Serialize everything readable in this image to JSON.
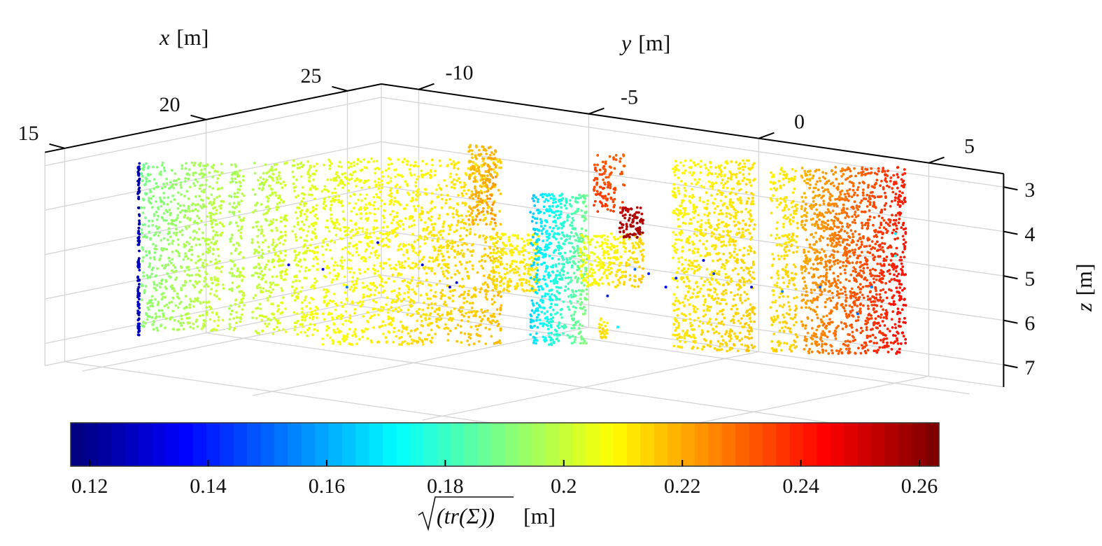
{
  "chart_data": {
    "type": "scatter",
    "dimensions": 3,
    "title": "",
    "axes": {
      "x": {
        "label_var": "x",
        "label_unit": "[m]",
        "ticks": [
          "15",
          "20",
          "25"
        ],
        "tick_values": [
          15,
          20,
          25
        ],
        "range": [
          14.3,
          26.2
        ]
      },
      "y": {
        "label_var": "y",
        "label_unit": "[m]",
        "ticks": [
          "-10",
          "-5",
          "0",
          "5"
        ],
        "tick_values": [
          -10,
          -5,
          0,
          5
        ],
        "range": [
          -11.1,
          7.2
        ]
      },
      "z": {
        "label_var": "z",
        "label_unit": "[m]",
        "ticks": [
          "3",
          "4",
          "5",
          "6",
          "7"
        ],
        "tick_values": [
          3,
          4,
          5,
          6,
          7
        ],
        "range": [
          2.7,
          7.5
        ],
        "reversed": true
      }
    },
    "grid": true,
    "colormap": "jet",
    "colorbar": {
      "location": "bottom",
      "label_sqrt_arg": "(tr(Σ))",
      "label_unit": "[m]",
      "ticks": [
        "0.12",
        "0.14",
        "0.16",
        "0.18",
        "0.2",
        "0.22",
        "0.24",
        "0.26"
      ],
      "tick_values": [
        0.12,
        0.14,
        0.16,
        0.18,
        0.2,
        0.22,
        0.24,
        0.26
      ],
      "clim": [
        0.1168,
        0.2633
      ]
    },
    "point_regions": [
      {
        "y": [
          -10.5,
          -10.45
        ],
        "z": [
          2.8,
          6.7
        ],
        "value": [
          0.125,
          0.125
        ],
        "n": 120
      },
      {
        "y": [
          -10.4,
          -8.0
        ],
        "z": [
          2.8,
          6.6
        ],
        "value": [
          0.19,
          0.2
        ],
        "n": 700
      },
      {
        "y": [
          -7.83,
          -7.4
        ],
        "z": [
          2.8,
          6.6
        ],
        "value": [
          0.196,
          0.2
        ],
        "n": 140
      },
      {
        "y": [
          -7.17,
          -6.15
        ],
        "z": [
          2.8,
          6.65
        ],
        "value": [
          0.198,
          0.203
        ],
        "n": 300
      },
      {
        "y": [
          -6.0,
          -5.25
        ],
        "z": [
          2.75,
          6.7
        ],
        "value": [
          0.202,
          0.206
        ],
        "n": 240
      },
      {
        "y": [
          -5.13,
          0.1
        ],
        "z": [
          2.7,
          6.9
        ],
        "value": [
          0.205,
          0.216
        ],
        "n": 1500
      },
      {
        "y": [
          -0.85,
          -0.05
        ],
        "z": [
          2.4,
          4.2
        ],
        "value": [
          0.218,
          0.222
        ],
        "n": 160
      },
      {
        "y": [
          -0.2,
          1.2
        ],
        "z": [
          4.4,
          5.7
        ],
        "value": [
          0.212,
          0.21
        ],
        "n": 220
      },
      {
        "y": [
          0.95,
          2.6
        ],
        "z": [
          3.5,
          6.9
        ],
        "value": [
          0.165,
          0.19
        ],
        "n": 650
      },
      {
        "y": [
          2.4,
          4.25
        ],
        "z": [
          4.4,
          5.6
        ],
        "value": [
          0.205,
          0.215
        ],
        "n": 260
      },
      {
        "y": [
          2.8,
          3.7
        ],
        "z": [
          2.6,
          3.9
        ],
        "value": [
          0.235,
          0.232
        ],
        "n": 110
      },
      {
        "y": [
          3.55,
          4.25
        ],
        "z": [
          3.8,
          4.5
        ],
        "value": [
          0.255,
          0.255
        ],
        "n": 90
      },
      {
        "y": [
          2.95,
          3.2
        ],
        "z": [
          6.3,
          6.75
        ],
        "value": [
          0.212,
          0.212
        ],
        "n": 25
      },
      {
        "y": [
          5.1,
          7.5
        ],
        "z": [
          2.75,
          7.05
        ],
        "value": [
          0.21,
          0.214
        ],
        "n": 900
      },
      {
        "y": [
          7.95,
          8.75
        ],
        "z": [
          2.9,
          7.05
        ],
        "value": [
          0.212,
          0.214
        ],
        "n": 260
      },
      {
        "y": [
          8.85,
          11.9
        ],
        "z": [
          2.9,
          7.1
        ],
        "value": [
          0.22,
          0.242
        ],
        "n": 1400
      }
    ],
    "outlier_points": [
      {
        "y": -3.5,
        "z": 4.6,
        "value": 0.13
      },
      {
        "y": -5.1,
        "z": 5.2,
        "value": 0.13
      },
      {
        "y": -6.1,
        "z": 5.1,
        "value": 0.135
      },
      {
        "y": -2.2,
        "z": 5.1,
        "value": 0.13
      },
      {
        "y": -1.4,
        "z": 5.6,
        "value": 0.13
      },
      {
        "y": -1.2,
        "z": 5.5,
        "value": 0.135
      },
      {
        "y": -4.4,
        "z": 5.6,
        "value": 0.155
      },
      {
        "y": 3.2,
        "z": 5.8,
        "value": 0.14
      },
      {
        "y": 4.4,
        "z": 5.3,
        "value": 0.14
      },
      {
        "y": 4.9,
        "z": 5.6,
        "value": 0.135
      },
      {
        "y": 5.2,
        "z": 5.4,
        "value": 0.14
      },
      {
        "y": 4.0,
        "z": 5.2,
        "value": 0.15
      },
      {
        "y": 6.3,
        "z": 5.3,
        "value": 0.145
      },
      {
        "y": 7.4,
        "z": 5.6,
        "value": 0.135
      },
      {
        "y": 8.3,
        "z": 5.7,
        "value": 0.155
      },
      {
        "y": 9.4,
        "z": 5.6,
        "value": 0.15
      },
      {
        "y": 10.9,
        "z": 5.6,
        "value": 0.155
      },
      {
        "y": 10.5,
        "z": 6.2,
        "value": 0.15
      },
      {
        "y": 11.6,
        "z": 4.4,
        "value": 0.17
      },
      {
        "y": 11.6,
        "z": 4.9,
        "value": 0.175
      },
      {
        "y": 3.5,
        "z": 6.5,
        "value": 0.17
      },
      {
        "y": 6.0,
        "z": 5.0,
        "value": 0.13
      }
    ]
  }
}
